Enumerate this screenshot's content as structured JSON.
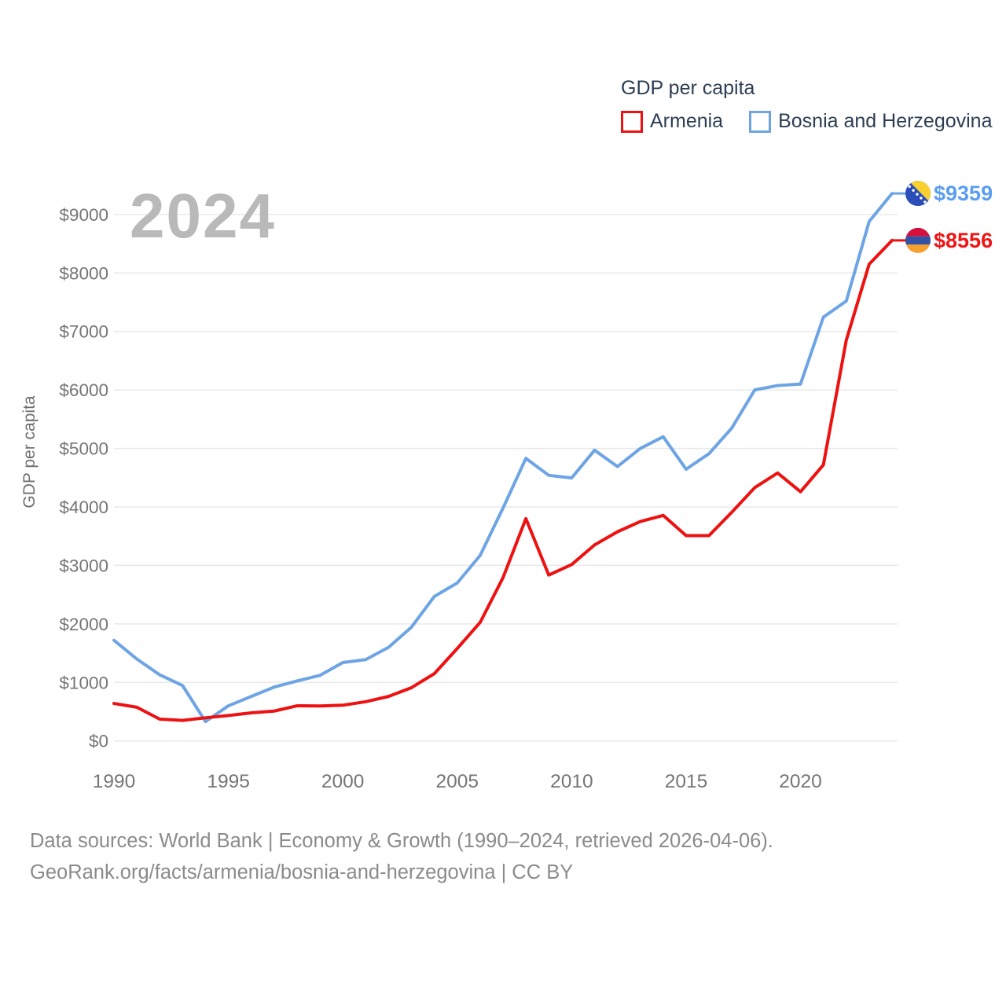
{
  "legend": {
    "title": "GDP per capita",
    "items": [
      {
        "label": "Armenia",
        "color": "#ee1111"
      },
      {
        "label": "Bosnia and Herzegovina",
        "color": "#6da4e4"
      }
    ]
  },
  "watermark": "2024",
  "chart_data": {
    "type": "line",
    "title": "GDP per capita",
    "xlabel": "",
    "ylabel": "GDP per capita",
    "x": [
      1990,
      1991,
      1992,
      1993,
      1994,
      1995,
      1996,
      1997,
      1998,
      1999,
      2000,
      2001,
      2002,
      2003,
      2004,
      2005,
      2006,
      2007,
      2008,
      2009,
      2010,
      2011,
      2012,
      2013,
      2014,
      2015,
      2016,
      2017,
      2018,
      2019,
      2020,
      2021,
      2022,
      2023,
      2024
    ],
    "series": [
      {
        "name": "Bosnia and Herzegovina",
        "color": "#6da4e4",
        "end_label": "$9359",
        "end_label_color": "#5b9ef0",
        "values": [
          1720,
          1400,
          1130,
          945,
          330,
          600,
          760,
          920,
          1025,
          1120,
          1340,
          1390,
          1600,
          1945,
          2470,
          2700,
          3170,
          3980,
          4830,
          4540,
          4495,
          4970,
          4690,
          5000,
          5200,
          4645,
          4910,
          5350,
          6000,
          6075,
          6100,
          7245,
          7520,
          8880,
          9359
        ]
      },
      {
        "name": "Armenia",
        "color": "#ee1111",
        "end_label": "$8556",
        "end_label_color": "#f01414",
        "values": [
          640,
          575,
          372,
          350,
          395,
          435,
          480,
          510,
          600,
          598,
          610,
          670,
          760,
          910,
          1150,
          1580,
          2025,
          2790,
          3800,
          2835,
          3015,
          3350,
          3575,
          3750,
          3855,
          3510,
          3510,
          3910,
          4330,
          4580,
          4260,
          4720,
          6850,
          8150,
          8556
        ]
      }
    ],
    "ylim": [
      0,
      9500
    ],
    "y_ticks": [
      {
        "value": 0,
        "label": "$0"
      },
      {
        "value": 1000,
        "label": "$1000"
      },
      {
        "value": 2000,
        "label": "$2000"
      },
      {
        "value": 3000,
        "label": "$3000"
      },
      {
        "value": 4000,
        "label": "$4000"
      },
      {
        "value": 5000,
        "label": "$5000"
      },
      {
        "value": 6000,
        "label": "$6000"
      },
      {
        "value": 7000,
        "label": "$7000"
      },
      {
        "value": 8000,
        "label": "$8000"
      },
      {
        "value": 9000,
        "label": "$9000"
      }
    ],
    "x_ticks": [
      {
        "value": 1990,
        "label": "1990"
      },
      {
        "value": 1995,
        "label": "1995"
      },
      {
        "value": 2000,
        "label": "2000"
      },
      {
        "value": 2005,
        "label": "2005"
      },
      {
        "value": 2010,
        "label": "2010"
      },
      {
        "value": 2015,
        "label": "2015"
      },
      {
        "value": 2020,
        "label": "2020"
      }
    ],
    "grid": "horizontal-only",
    "legend_position": "top-right"
  },
  "flags": {
    "bosnia": {
      "bg": "#2a4db8",
      "triangle": "#f8d030",
      "stars": "#ffffff"
    },
    "armenia": {
      "red": "#d6103c",
      "blue": "#3452a5",
      "orange": "#f7a02e"
    }
  },
  "footer": {
    "line1": "Data sources: World Bank | Economy & Growth (1990–2024, retrieved 2026-04-06).",
    "line2": "GeoRank.org/facts/armenia/bosnia-and-herzegovina | CC BY"
  },
  "colors": {
    "grid": "#e9e9e9",
    "axis_text": "#757575",
    "legend_text": "#2d3e54",
    "watermark": "#b9b9b9",
    "footer_text": "#8b8b8b"
  }
}
